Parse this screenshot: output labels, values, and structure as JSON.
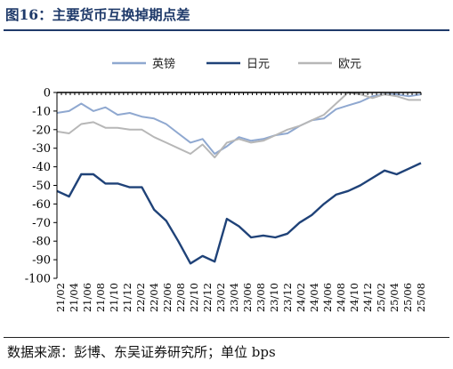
{
  "figure": {
    "title": "图16：主要货币互换掉期点差",
    "source": "数据来源：彭博、东吴证券研究所；单位 bps"
  },
  "chart_data": {
    "type": "line",
    "ylim": [
      -100,
      0
    ],
    "yticks": [
      0,
      -10,
      -20,
      -30,
      -40,
      -50,
      -60,
      -70,
      -80,
      -90,
      -100
    ],
    "x_tick_labels": [
      "21/02",
      "21/04",
      "21/06",
      "21/08",
      "21/10",
      "21/12",
      "22/02",
      "22/04",
      "22/06",
      "22/08",
      "22/10",
      "22/12",
      "23/02",
      "23/04",
      "23/06",
      "23/08",
      "23/10",
      "23/12",
      "24/02",
      "24/04",
      "24/06",
      "24/08",
      "24/10",
      "24/12",
      "25/02",
      "25/04",
      "25/06",
      "25/08"
    ],
    "legend_position": "top-center",
    "grid": false,
    "series": [
      {
        "name": "英镑",
        "color": "#8fa8d0",
        "values": [
          -11,
          -10,
          -6,
          -10,
          -8,
          -12,
          -11,
          -13,
          -14,
          -17,
          -22,
          -27,
          -25,
          -33,
          -29,
          -24,
          -26,
          -25,
          -23,
          -22,
          -18,
          -15,
          -14,
          -9,
          -7,
          -5,
          -2,
          -1,
          -1,
          -2,
          -1
        ]
      },
      {
        "name": "日元",
        "color": "#1f4278",
        "values": [
          -53,
          -56,
          -44,
          -44,
          -49,
          -49,
          -51,
          -51,
          -63,
          -69,
          -80,
          -92,
          -88,
          -91,
          -68,
          -72,
          -78,
          -77,
          -78,
          -76,
          -70,
          -66,
          -60,
          -55,
          -53,
          -50,
          -46,
          -42,
          -44,
          -41,
          -38
        ]
      },
      {
        "name": "欧元",
        "color": "#b7b7b7",
        "values": [
          -21,
          -22,
          -17,
          -16,
          -19,
          -19,
          -20,
          -20,
          -24,
          -27,
          -30,
          -33,
          -28,
          -35,
          -27,
          -25,
          -27,
          -26,
          -23,
          -20,
          -18,
          -15,
          -12,
          -6,
          0,
          -1,
          -3,
          -1,
          -2,
          -4,
          -4
        ]
      }
    ]
  }
}
